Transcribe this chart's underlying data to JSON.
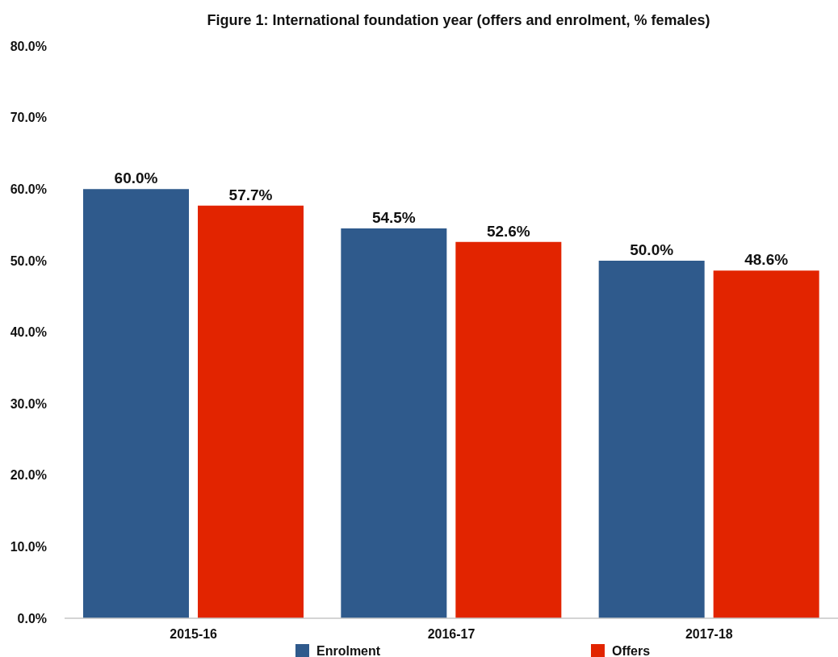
{
  "chart_data": {
    "type": "bar",
    "title": "Figure 1: International foundation year (offers and enrolment, % females)",
    "categories": [
      "2015-16",
      "2016-17",
      "2017-18"
    ],
    "series": [
      {
        "name": "Enrolment",
        "color": "#2f5a8c",
        "values": [
          60.0,
          54.5,
          50.0
        ],
        "value_labels": [
          "60.0%",
          "54.5%",
          "50.0%"
        ]
      },
      {
        "name": "Offers",
        "color": "#e22400",
        "values": [
          57.7,
          52.6,
          48.6
        ],
        "value_labels": [
          "57.7%",
          "52.6%",
          "48.6%"
        ]
      }
    ],
    "ylim": [
      0,
      80
    ],
    "yticks": [
      {
        "value": 0,
        "label": "0.0%"
      },
      {
        "value": 10,
        "label": "10.0%"
      },
      {
        "value": 20,
        "label": "20.0%"
      },
      {
        "value": 30,
        "label": "30.0%"
      },
      {
        "value": 40,
        "label": "40.0%"
      },
      {
        "value": 50,
        "label": "50.0%"
      },
      {
        "value": 60,
        "label": "60.0%"
      },
      {
        "value": 70,
        "label": "70.0%"
      },
      {
        "value": 80,
        "label": "80.0%"
      }
    ],
    "legend": "bottom"
  }
}
